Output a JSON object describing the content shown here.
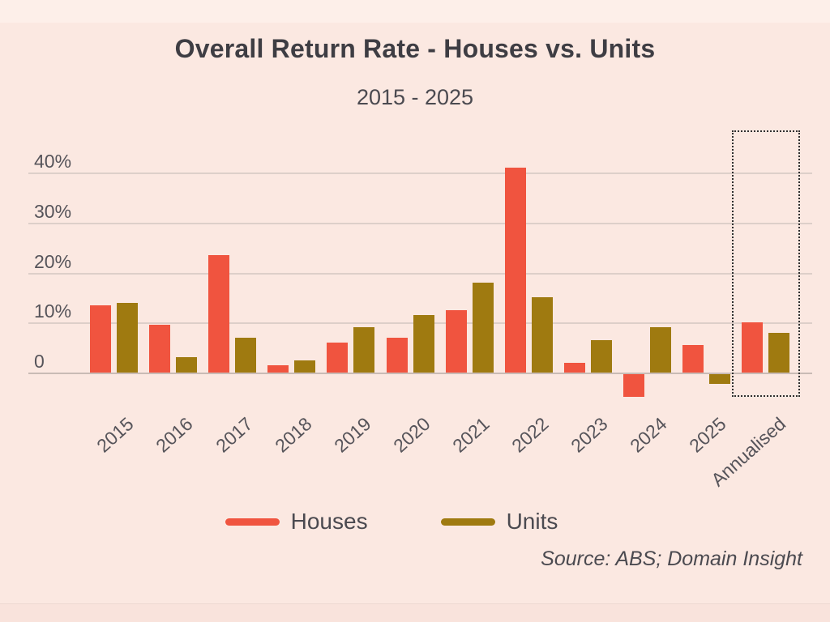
{
  "title": "Overall Return Rate - Houses vs. Units",
  "subtitle": "2015 - 2025",
  "source": "Source: ABS; Domain Insight",
  "legend": [
    {
      "label": "Houses",
      "color": "#f0543f"
    },
    {
      "label": "Units",
      "color": "#9f7a10"
    }
  ],
  "colors": {
    "background": "#fbe8e1",
    "houses": "#f0543f",
    "units": "#9f7a10",
    "gridline": "#ddcfc9",
    "title_text": "#3e3d43",
    "annotation_border": "#2f2f2f"
  },
  "chart_data": {
    "type": "bar",
    "title": "Overall Return Rate - Houses vs. Units",
    "subtitle": "2015 - 2025",
    "categories": [
      "2015",
      "2016",
      "2017",
      "2018",
      "2019",
      "2020",
      "2021",
      "2022",
      "2023",
      "2024",
      "2025",
      "Annualised"
    ],
    "series": [
      {
        "name": "Houses",
        "color": "#f0543f",
        "values": [
          13.5,
          9.5,
          23.5,
          1.5,
          6,
          7,
          12.5,
          41,
          2,
          -4.5,
          5.5,
          10
        ]
      },
      {
        "name": "Units",
        "color": "#9f7a10",
        "values": [
          14,
          3,
          7,
          2.5,
          9,
          11.5,
          18,
          15,
          6.5,
          9,
          -2,
          8
        ]
      }
    ],
    "y_ticks": [
      {
        "label": "40%",
        "value": 40
      },
      {
        "label": "30%",
        "value": 30
      },
      {
        "label": "20%",
        "value": 20
      },
      {
        "label": "10%",
        "value": 10
      },
      {
        "label": "0",
        "value": 0
      }
    ],
    "ylim": [
      -6,
      44
    ],
    "grid": true,
    "legend_position": "bottom",
    "annotation": {
      "type": "dotted-box",
      "category": "Annualised"
    },
    "xlabel": "",
    "ylabel": ""
  }
}
